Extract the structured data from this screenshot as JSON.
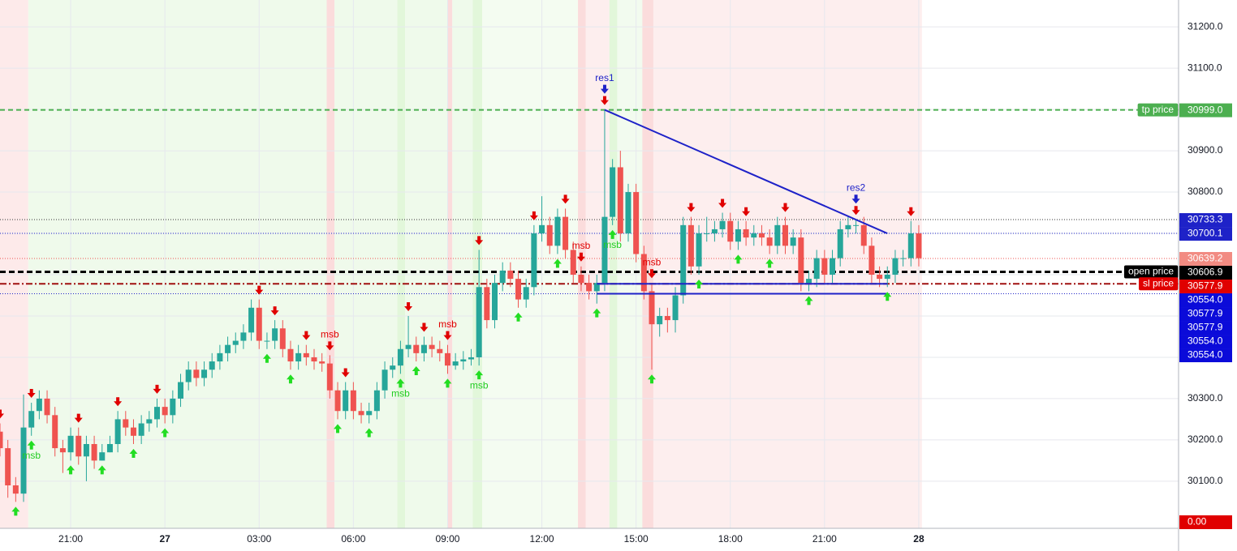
{
  "chart_data": {
    "type": "candlestick",
    "up_color": "#26a69a",
    "down_color": "#ef5350",
    "xlim": [
      18.75,
      56.27
    ],
    "ylim": [
      29986,
      31265
    ],
    "xticks": [
      {
        "value": 21,
        "label": "21:00"
      },
      {
        "value": 24,
        "label": "27"
      },
      {
        "value": 27,
        "label": "03:00"
      },
      {
        "value": 30,
        "label": "06:00"
      },
      {
        "value": 33,
        "label": "09:00"
      },
      {
        "value": 36,
        "label": "12:00"
      },
      {
        "value": 39,
        "label": "15:00"
      },
      {
        "value": 42,
        "label": "18:00"
      },
      {
        "value": 45,
        "label": "21:00"
      },
      {
        "value": 48,
        "label": "28"
      }
    ],
    "yticks": [
      {
        "value": 30100,
        "label": "30100.0"
      },
      {
        "value": 30200,
        "label": "30200.0"
      },
      {
        "value": 30300,
        "label": "30300.0"
      },
      {
        "value": 30400,
        "label": "30400.0"
      },
      {
        "value": 30500,
        "label": "30500.0"
      },
      {
        "value": 30600,
        "label": "30600.0"
      },
      {
        "value": 30700,
        "label": "30700.0"
      },
      {
        "value": 30800,
        "label": "30800.0"
      },
      {
        "value": 30900,
        "label": "30900.0"
      },
      {
        "value": 31000,
        "label": "31000.0"
      },
      {
        "value": 31100,
        "label": "31100.0"
      },
      {
        "value": 31200,
        "label": "31200.0"
      }
    ],
    "grid": true,
    "x": [
      18.75,
      19,
      19.25,
      19.5,
      19.75,
      20,
      20.25,
      20.5,
      20.75,
      21,
      21.25,
      21.5,
      21.75,
      22,
      22.25,
      22.5,
      22.75,
      23,
      23.25,
      23.5,
      23.75,
      24,
      24.25,
      24.5,
      24.75,
      25,
      25.25,
      25.5,
      25.75,
      26,
      26.25,
      26.5,
      26.75,
      27,
      27.25,
      27.5,
      27.75,
      28,
      28.25,
      28.5,
      28.75,
      29,
      29.25,
      29.5,
      29.75,
      30,
      30.25,
      30.5,
      30.75,
      31,
      31.25,
      31.5,
      31.75,
      32,
      32.25,
      32.5,
      32.75,
      33,
      33.25,
      33.5,
      33.75,
      34,
      34.25,
      34.5,
      34.75,
      35,
      35.25,
      35.5,
      35.75,
      36,
      36.25,
      36.5,
      36.75,
      37,
      37.25,
      37.5,
      37.75,
      38,
      38.25,
      38.5,
      38.75,
      39,
      39.25,
      39.5,
      39.75,
      40,
      40.25,
      40.5,
      40.75,
      41,
      41.25,
      41.5,
      41.75,
      42,
      42.25,
      42.5,
      42.75,
      43,
      43.25,
      43.5,
      43.75,
      44,
      44.25,
      44.5,
      44.75,
      45,
      45.25,
      45.5,
      45.75,
      46,
      46.25,
      46.5,
      46.75,
      47,
      47.25,
      47.5,
      47.75,
      48
    ],
    "open": [
      30220,
      30180,
      30090,
      30070,
      30230,
      30270,
      30300,
      30260,
      30180,
      30170,
      30210,
      30160,
      30190,
      30150,
      30170,
      30190,
      30250,
      30230,
      30210,
      30240,
      30250,
      30280,
      30260,
      30300,
      30340,
      30370,
      30350,
      30370,
      30390,
      30410,
      30430,
      30440,
      30460,
      30520,
      30440,
      30440,
      30470,
      30420,
      30390,
      30410,
      30400,
      30390,
      30385,
      30320,
      30270,
      30320,
      30270,
      30260,
      30270,
      30320,
      30370,
      30380,
      30420,
      30430,
      30410,
      30430,
      30420,
      30410,
      30380,
      30390,
      30395,
      30400,
      30570,
      30490,
      30580,
      30610,
      30590,
      30540,
      30570,
      30700,
      30720,
      30670,
      30740,
      30660,
      30600,
      30580,
      30560,
      30580,
      30740,
      30860,
      30700,
      30800,
      30650,
      30560,
      30480,
      30500,
      30490,
      30550,
      30720,
      30620,
      30700,
      30700,
      30710,
      30730,
      30680,
      30710,
      30690,
      30700,
      30690,
      30670,
      30720,
      30670,
      30690,
      30580,
      30590,
      30640,
      30600,
      30640,
      30710,
      30720,
      30720,
      30670,
      30600,
      30590,
      30600,
      30640,
      30640,
      30700
    ],
    "high": [
      30240,
      30200,
      30110,
      30310,
      30290,
      30320,
      30320,
      30280,
      30200,
      30230,
      30230,
      30210,
      30210,
      30190,
      30210,
      30270,
      30270,
      30250,
      30260,
      30270,
      30300,
      30300,
      30320,
      30360,
      30390,
      30390,
      30390,
      30410,
      30430,
      30450,
      30460,
      30480,
      30540,
      30540,
      30460,
      30490,
      30490,
      30440,
      30430,
      30430,
      30420,
      30410,
      30405,
      30340,
      30340,
      30340,
      30290,
      30290,
      30340,
      30390,
      30400,
      30440,
      30500,
      30450,
      30450,
      30450,
      30440,
      30430,
      30410,
      30415,
      30420,
      30660,
      30590,
      30600,
      30630,
      30630,
      30610,
      30590,
      30720,
      30790,
      30740,
      30760,
      30760,
      30680,
      30620,
      30600,
      30600,
      30999,
      30880,
      30900,
      30820,
      30820,
      30670,
      30580,
      30520,
      30520,
      30570,
      30740,
      30740,
      30720,
      30740,
      30730,
      30750,
      30750,
      30730,
      30730,
      30720,
      30720,
      30710,
      30740,
      30740,
      30710,
      30710,
      30610,
      30660,
      30660,
      30660,
      30730,
      30740,
      30733,
      30740,
      30690,
      30620,
      30620,
      30660,
      30660,
      30730,
      30720
    ],
    "low": [
      30160,
      30060,
      30050,
      30050,
      30210,
      30250,
      30240,
      30160,
      30120,
      30150,
      30140,
      30100,
      30130,
      30150,
      30170,
      30170,
      30210,
      30190,
      30190,
      30220,
      30230,
      30240,
      30240,
      30280,
      30320,
      30330,
      30330,
      30350,
      30370,
      30390,
      30410,
      30420,
      30440,
      30420,
      30420,
      30420,
      30400,
      30370,
      30370,
      30380,
      30370,
      30365,
      30300,
      30250,
      30250,
      30250,
      30240,
      30240,
      30250,
      30300,
      30350,
      30360,
      30400,
      30390,
      30390,
      30400,
      30390,
      30360,
      30370,
      30370,
      30380,
      30380,
      30470,
      30470,
      30560,
      30570,
      30520,
      30520,
      30550,
      30680,
      30650,
      30650,
      30640,
      30580,
      30560,
      30540,
      30530,
      30560,
      30720,
      30680,
      30680,
      30630,
      30540,
      30370,
      30450,
      30460,
      30460,
      30530,
      30600,
      30600,
      30680,
      30680,
      30690,
      30660,
      30660,
      30670,
      30670,
      30670,
      30650,
      30650,
      30650,
      30650,
      30560,
      30560,
      30570,
      30580,
      30580,
      30620,
      30690,
      30700,
      30650,
      30580,
      30570,
      30570,
      30580,
      30620,
      30620,
      30620
    ],
    "close": [
      30180,
      30090,
      30070,
      30230,
      30270,
      30300,
      30260,
      30180,
      30170,
      30210,
      30160,
      30190,
      30150,
      30170,
      30190,
      30250,
      30230,
      30210,
      30240,
      30250,
      30280,
      30260,
      30300,
      30340,
      30370,
      30350,
      30370,
      30390,
      30410,
      30430,
      30440,
      30460,
      30520,
      30440,
      30440,
      30470,
      30420,
      30390,
      30410,
      30400,
      30390,
      30385,
      30320,
      30270,
      30320,
      30270,
      30260,
      30270,
      30320,
      30370,
      30380,
      30420,
      30430,
      30410,
      30430,
      30420,
      30410,
      30380,
      30390,
      30395,
      30400,
      30570,
      30490,
      30580,
      30610,
      30590,
      30540,
      30570,
      30700,
      30720,
      30670,
      30740,
      30660,
      30600,
      30580,
      30560,
      30580,
      30740,
      30860,
      30700,
      30800,
      30650,
      30560,
      30480,
      30500,
      30490,
      30550,
      30720,
      30620,
      30700,
      30700,
      30710,
      30730,
      30680,
      30710,
      30690,
      30700,
      30690,
      30670,
      30720,
      30670,
      30690,
      30580,
      30590,
      30640,
      30600,
      30640,
      30710,
      30720,
      30720,
      30670,
      30600,
      30590,
      30600,
      30640,
      30640,
      30700,
      30640
    ],
    "zones": [
      {
        "from": 18.75,
        "to": 19.65,
        "color": "#fdeaea"
      },
      {
        "from": 19.65,
        "to": 29.15,
        "color": "#effaeb"
      },
      {
        "from": 29.15,
        "to": 29.4,
        "color": "#fbdcdc"
      },
      {
        "from": 29.4,
        "to": 31.4,
        "color": "#effaeb"
      },
      {
        "from": 31.4,
        "to": 31.65,
        "color": "#e2f7da"
      },
      {
        "from": 31.65,
        "to": 33.0,
        "color": "#effaeb"
      },
      {
        "from": 33.0,
        "to": 33.15,
        "color": "#fbdcdc"
      },
      {
        "from": 33.15,
        "to": 33.8,
        "color": "#effaeb"
      },
      {
        "from": 33.8,
        "to": 34.1,
        "color": "#e2f7da"
      },
      {
        "from": 34.1,
        "to": 37.15,
        "color": "#f4fcf1"
      },
      {
        "from": 37.15,
        "to": 37.4,
        "color": "#fbdcdc"
      },
      {
        "from": 37.4,
        "to": 38.15,
        "color": "#fdeeee"
      },
      {
        "from": 38.15,
        "to": 38.4,
        "color": "#e2f7da"
      },
      {
        "from": 38.4,
        "to": 39.2,
        "color": "#f2fbef"
      },
      {
        "from": 39.2,
        "to": 39.55,
        "color": "#fbdcdc"
      },
      {
        "from": 39.55,
        "to": 48.1,
        "color": "#fdeeee"
      }
    ],
    "levels": [
      {
        "value": 30999.0,
        "value_label": "30999.0",
        "tag": "tp price",
        "color": "#4caf50",
        "dash": "6,4",
        "width": 2
      },
      {
        "value": 30733.3,
        "value_label": "30733.3",
        "color": "#1e22c8",
        "line_color": "#333333",
        "dash": "1,2",
        "width": 1
      },
      {
        "value": 30700.1,
        "value_label": "30700.1",
        "color": "#1e22c8",
        "dash": "1,2",
        "width": 1
      },
      {
        "value": 30639.2,
        "value_label": "30639.2",
        "color": "#f28b82",
        "line_color": "#ef5350",
        "dash": "1,2",
        "width": 1
      },
      {
        "value": 30606.9,
        "value_label": "30606.9",
        "tag": "open price",
        "color": "#000000",
        "dash": "7,4",
        "width": 3
      },
      {
        "value": 30577.9,
        "value_label": "30577.9",
        "tag": "sl price",
        "color": "#e00000",
        "line_color": "#a01010",
        "dash": "8,3,2,3",
        "width": 2
      },
      {
        "value": 30554.0,
        "value_label": "30554.0",
        "color": "#0b0bd9",
        "line_color": "#1e22c8",
        "dash": "1,2",
        "width": 1
      }
    ],
    "extra_price_labels": [
      {
        "value": 30577.9,
        "label": "30577.9",
        "color": "#0b0bd9"
      },
      {
        "value": 30577.9,
        "label": "30577.9",
        "color": "#0b0bd9"
      },
      {
        "value": 30554.0,
        "label": "30554.0",
        "color": "#0b0bd9"
      },
      {
        "value": 30554.0,
        "label": "30554.0",
        "color": "#0b0bd9"
      },
      {
        "value": 0.0,
        "label": "0.00",
        "color": "#e00000",
        "pin": "bottom"
      }
    ],
    "segments": [
      {
        "x": [
          38.0,
          47.0
        ],
        "y": [
          30999,
          30700
        ],
        "color": "#1e22c8"
      },
      {
        "x": [
          37.75,
          47.0
        ],
        "y": [
          30577.9,
          30577.9
        ],
        "color": "#1e22c8"
      },
      {
        "x": [
          37.75,
          47.0
        ],
        "y": [
          30554.0,
          30554.0
        ],
        "color": "#1e22c8"
      }
    ],
    "signals_down": [
      18.75,
      19.75,
      21.25,
      22.5,
      23.75,
      27.0,
      27.5,
      28.5,
      29.25,
      29.75,
      31.75,
      32.25,
      33.0,
      34.0,
      35.75,
      36.75,
      37.25,
      38.0,
      39.5,
      40.75,
      41.75,
      42.5,
      43.75,
      46.0,
      47.75
    ],
    "signals_up": [
      19.25,
      19.75,
      21.0,
      22.0,
      23.0,
      24.0,
      27.25,
      28.0,
      29.5,
      30.5,
      31.5,
      32.0,
      33.0,
      34.0,
      35.25,
      36.5,
      37.75,
      38.25,
      39.5,
      41.0,
      42.25,
      43.25,
      44.5,
      47.0
    ],
    "signals_res": [
      38.0,
      46.0
    ],
    "labels": [
      {
        "text": "res1",
        "x": 38.0,
        "side": "above",
        "color": "#1e22c8"
      },
      {
        "text": "res2",
        "x": 46.0,
        "side": "above",
        "color": "#1e22c8"
      },
      {
        "text": "msb",
        "x": 29.25,
        "side": "above",
        "color": "#e00000"
      },
      {
        "text": "msb",
        "x": 33.0,
        "side": "above",
        "color": "#e00000"
      },
      {
        "text": "msb",
        "x": 37.25,
        "side": "above",
        "color": "#e00000"
      },
      {
        "text": "msb",
        "x": 39.5,
        "side": "above",
        "color": "#e00000"
      },
      {
        "text": "msb",
        "x": 19.75,
        "side": "below",
        "color": "#22cc22"
      },
      {
        "text": "msb",
        "x": 31.5,
        "side": "below",
        "color": "#22cc22"
      },
      {
        "text": "msb",
        "x": 34.0,
        "side": "below",
        "color": "#22cc22"
      },
      {
        "text": "msb",
        "x": 38.25,
        "side": "below",
        "color": "#22cc22"
      }
    ]
  }
}
